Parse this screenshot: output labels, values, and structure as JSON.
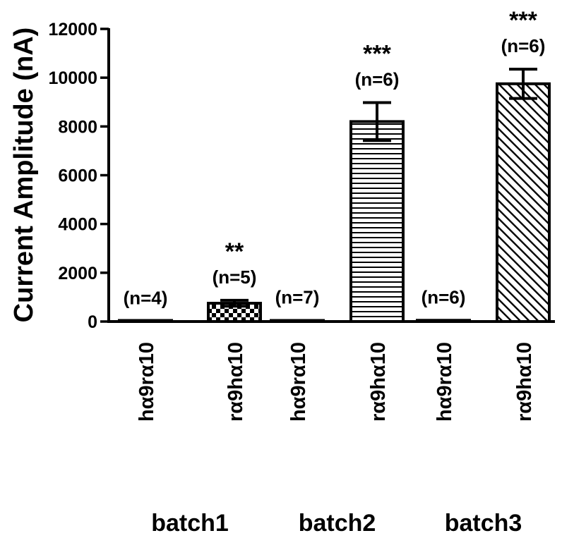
{
  "chart_data": {
    "type": "bar",
    "ylabel": "Current Amplitude (nA)",
    "xlabel": "",
    "title": "",
    "ylim": [
      0,
      12000
    ],
    "yticks": [
      0,
      2000,
      4000,
      6000,
      8000,
      10000,
      12000
    ],
    "ytick_labels": [
      "0",
      "2000",
      "4000",
      "6000",
      "8000",
      "10000",
      "12000"
    ],
    "categories": [
      "hα9rα10",
      "rα9hα10",
      "hα9rα10",
      "rα9hα10",
      "hα9rα10",
      "rα9hα10"
    ],
    "values": [
      10,
      750,
      40,
      8200,
      50,
      9750
    ],
    "errors": [
      5,
      120,
      15,
      780,
      20,
      600
    ],
    "n_labels": [
      "(n=4)",
      "(n=5)",
      "(n=7)",
      "(n=6)",
      "(n=6)",
      "(n=6)"
    ],
    "significance": [
      "",
      "**",
      "",
      "***",
      "",
      "***"
    ],
    "patterns": [
      "none",
      "checker",
      "hlines",
      "hlines",
      "none",
      "diagonal"
    ],
    "groups": [
      {
        "label": "batch1",
        "bars": [
          0,
          1
        ]
      },
      {
        "label": "batch2",
        "bars": [
          2,
          3
        ]
      },
      {
        "label": "batch3",
        "bars": [
          4,
          5
        ]
      }
    ],
    "grid": false,
    "legend": "none"
  }
}
